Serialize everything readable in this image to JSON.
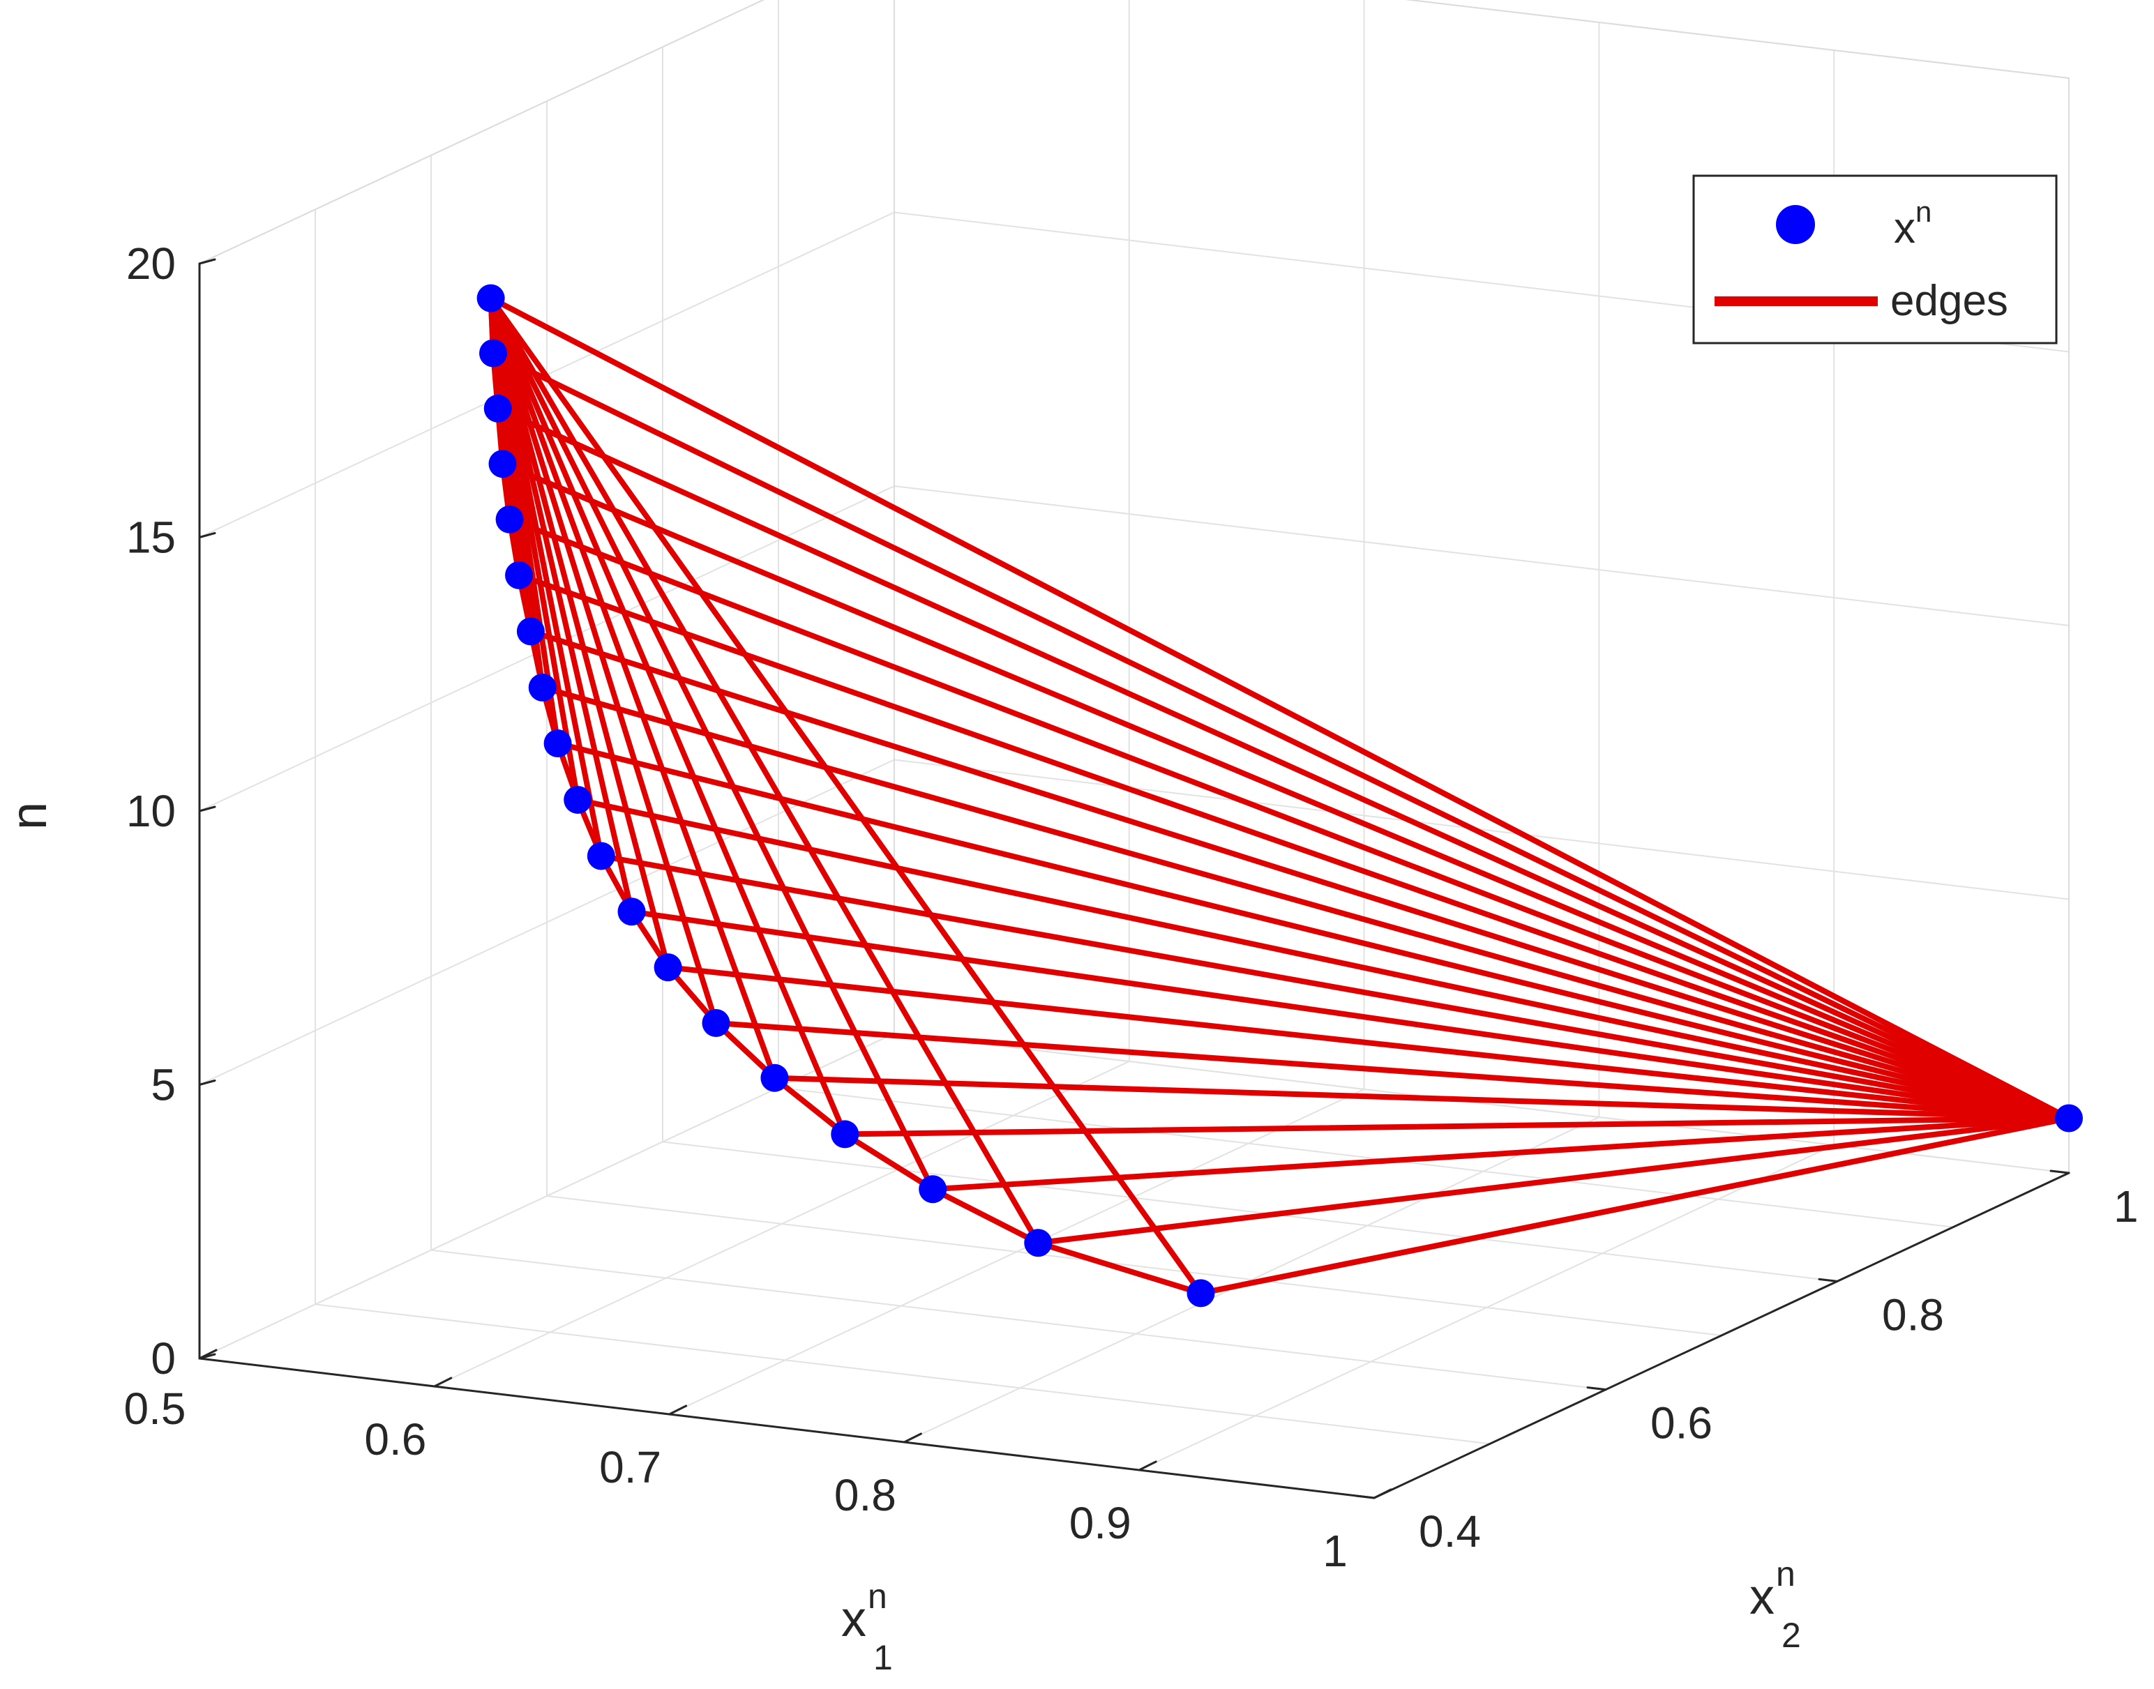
{
  "chart_data": {
    "type": "scatter",
    "plot_style": "3d",
    "view": "perspective",
    "grid": true,
    "legend_placement": "top-right",
    "axes": {
      "x1": {
        "label": "x",
        "sup": "n",
        "sub": "1",
        "range": [
          0.5,
          1.0
        ],
        "ticks": [
          "0.5",
          "0.6",
          "0.7",
          "0.8",
          "0.9",
          "1"
        ]
      },
      "x2": {
        "label": "x",
        "sup": "n",
        "sub": "2",
        "range": [
          0.4,
          1.0
        ],
        "ticks": [
          "0.4",
          "0.6",
          "0.8",
          "1"
        ]
      },
      "n": {
        "label": "n",
        "range": [
          0,
          20
        ],
        "ticks": [
          "0",
          "5",
          "10",
          "15",
          "20"
        ]
      }
    },
    "series": [
      {
        "name": "x",
        "name_sup": "n",
        "marker": "circle",
        "color": "#0000ff",
        "points": [
          {
            "x1": 1.0,
            "x2": 1.0,
            "n": 1
          },
          {
            "x1": 0.872,
            "x2": 0.51,
            "n": 2
          },
          {
            "x1": 0.82,
            "x2": 0.475,
            "n": 3
          },
          {
            "x1": 0.785,
            "x2": 0.455,
            "n": 4
          },
          {
            "x1": 0.755,
            "x2": 0.44,
            "n": 5
          },
          {
            "x1": 0.73,
            "x2": 0.43,
            "n": 6
          },
          {
            "x1": 0.71,
            "x2": 0.42,
            "n": 7
          },
          {
            "x1": 0.693,
            "x2": 0.413,
            "n": 8
          },
          {
            "x1": 0.68,
            "x2": 0.408,
            "n": 9
          },
          {
            "x1": 0.669,
            "x2": 0.404,
            "n": 10
          },
          {
            "x1": 0.66,
            "x2": 0.402,
            "n": 11
          },
          {
            "x1": 0.652,
            "x2": 0.401,
            "n": 12
          },
          {
            "x1": 0.646,
            "x2": 0.4,
            "n": 13
          },
          {
            "x1": 0.641,
            "x2": 0.4,
            "n": 14
          },
          {
            "x1": 0.636,
            "x2": 0.4,
            "n": 15
          },
          {
            "x1": 0.632,
            "x2": 0.4,
            "n": 16
          },
          {
            "x1": 0.629,
            "x2": 0.4,
            "n": 17
          },
          {
            "x1": 0.627,
            "x2": 0.4,
            "n": 18
          },
          {
            "x1": 0.625,
            "x2": 0.4,
            "n": 19
          },
          {
            "x1": 0.624,
            "x2": 0.4,
            "n": 20
          }
        ]
      },
      {
        "name": "edges",
        "line": true,
        "color": "#e00000",
        "chain": true,
        "edges_to_first": [
          2,
          3,
          4,
          5,
          6,
          7,
          8,
          9,
          10,
          11,
          12,
          13,
          14,
          15,
          16,
          17,
          18,
          19,
          20
        ],
        "edges_to_last": [
          1,
          2,
          3,
          4,
          5,
          6,
          7,
          8,
          9,
          10,
          11,
          12,
          13,
          14,
          15,
          16,
          17,
          18,
          19
        ]
      }
    ]
  }
}
